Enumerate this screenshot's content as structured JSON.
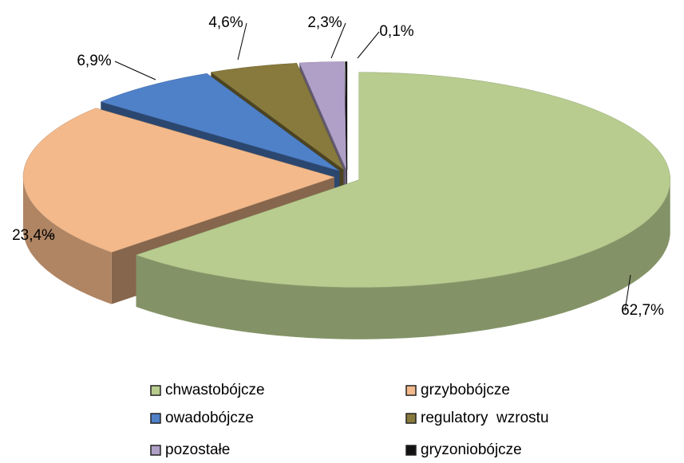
{
  "chart_data": {
    "type": "pie3d",
    "categories": [
      "chwastobójcze",
      "grzybobójcze",
      "owadobójcze",
      "regulatory  wzrostu",
      "pozostałe",
      "gryzoniobójcze"
    ],
    "values": [
      62.7,
      23.4,
      6.9,
      4.6,
      2.3,
      0.1
    ],
    "value_labels": [
      "62,7%",
      "23,4%",
      "6,9%",
      "4,6%",
      "2,3%",
      "0,1%"
    ],
    "colors": [
      "#b8cc8f",
      "#f3b98b",
      "#4f81c9",
      "#887a3c",
      "#b0a0c8",
      "#111111"
    ],
    "legend": "bottom"
  }
}
